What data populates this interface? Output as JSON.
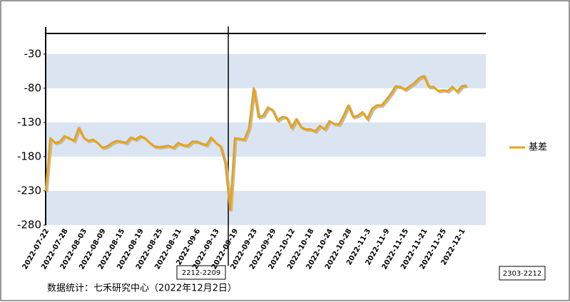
{
  "chart_data": {
    "type": "line",
    "categories": [
      "2022-07-22",
      null,
      null,
      null,
      "2022-07-28",
      null,
      null,
      null,
      "2022-08-03",
      null,
      null,
      null,
      "2022-08-09",
      null,
      null,
      null,
      "2022-08-15",
      null,
      null,
      null,
      "2022-08-19",
      null,
      null,
      null,
      "2022-08-25",
      null,
      null,
      null,
      "2022-08-31",
      null,
      null,
      null,
      "2022-09-6",
      null,
      null,
      null,
      "2022-09-13",
      null,
      null,
      null,
      "2022-09-19",
      null,
      null,
      null,
      "2022-09-23",
      null,
      null,
      null,
      "2022-09-29",
      null,
      null,
      null,
      "2022-10-12",
      null,
      null,
      null,
      "2022-10-18",
      null,
      null,
      null,
      "2022-10-24",
      null,
      null,
      null,
      "2022-10-28",
      null,
      null,
      null,
      "2022-11-3",
      null,
      null,
      null,
      "2022-11-9",
      null,
      null,
      null,
      "2022-11-15",
      null,
      null,
      null,
      "2022-11-21",
      null,
      null,
      null,
      "2022-11-25",
      null,
      null,
      null,
      "2022-12-1",
      null
    ],
    "series": [
      {
        "name": "基差",
        "color": "#e8a317",
        "values": [
          -230,
          -153,
          -160,
          -158,
          -150,
          -153,
          -157,
          -138,
          -152,
          -157,
          -155,
          -160,
          -167,
          -165,
          -160,
          -157,
          -158,
          -160,
          -152,
          -155,
          -150,
          -153,
          -160,
          -165,
          -166,
          -165,
          -164,
          -167,
          -160,
          -163,
          -164,
          -158,
          -158,
          -161,
          -163,
          -152,
          -160,
          -165,
          -190,
          -258,
          -153,
          -154,
          -155,
          -138,
          -80,
          -122,
          -120,
          -108,
          -112,
          -127,
          -122,
          -123,
          -138,
          -125,
          -137,
          -140,
          -140,
          -143,
          -135,
          -140,
          -128,
          -132,
          -133,
          -120,
          -105,
          -122,
          -120,
          -115,
          -125,
          -110,
          -105,
          -105,
          -97,
          -88,
          -77,
          -78,
          -82,
          -77,
          -72,
          -65,
          -62,
          -78,
          -78,
          -84,
          -83,
          -84,
          -78,
          -85,
          -77,
          -76
        ]
      }
    ],
    "ylim": [
      -280,
      0
    ],
    "yticks": [
      -30,
      -80,
      -130,
      -180,
      -230,
      -280
    ],
    "bands": true,
    "legend": "right",
    "annotations": [
      "2212-2209",
      "2303-2212"
    ],
    "source": "数据统计：七禾研究中心（2022年12月2日）"
  }
}
